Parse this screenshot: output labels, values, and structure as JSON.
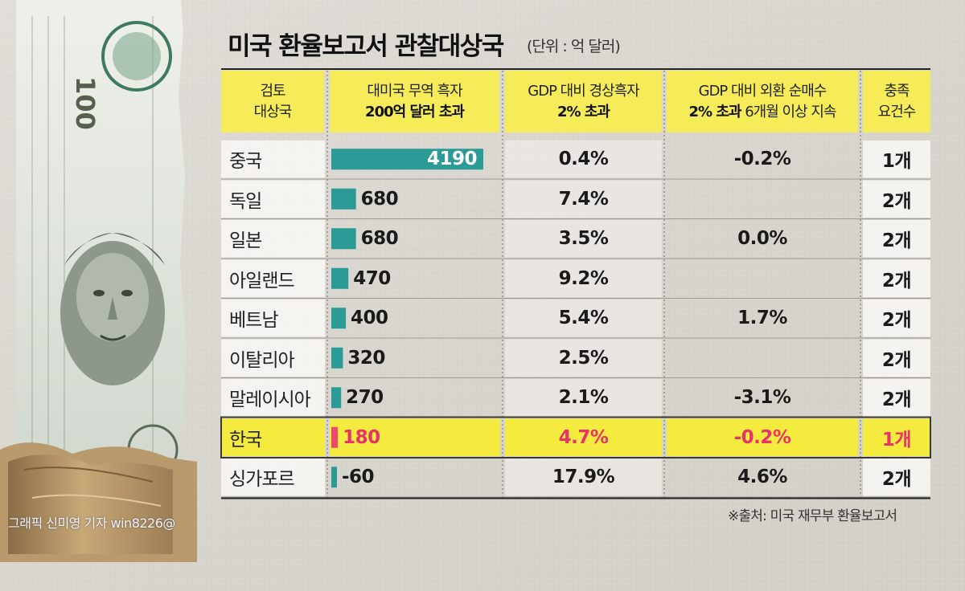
{
  "title": "미국 환율보고서 관찰대상국",
  "unit": "(단위 : 억 달러)",
  "headers": {
    "country": [
      "검토",
      "대상국"
    ],
    "trade": [
      "대미국 무역 흑자",
      "200억 달러 초과"
    ],
    "current": [
      "GDP 대비 경상흑자",
      "2% 초과"
    ],
    "fx": [
      "GDP 대비 외환 순매수",
      "2% 초과",
      " 6개월 이상 지속"
    ],
    "met": [
      "충족",
      "요건수"
    ]
  },
  "colors": {
    "bar": "#2c9a97",
    "bar_highlight": "#e84a6c",
    "highlight_text": "#e8326a",
    "header_bg": "#f6ec5a",
    "row_highlight": "#f5ea3e"
  },
  "chart_data": {
    "type": "table",
    "columns": [
      "검토 대상국",
      "대미국 무역 흑자 200억 달러 초과",
      "GDP 대비 경상흑자 2% 초과",
      "GDP 대비 외환 순매수 2% 초과 6개월 이상 지속",
      "충족 요건수"
    ],
    "rows": [
      {
        "country": "중국",
        "trade": 4190,
        "trade_label": "4190",
        "current": "0.4%",
        "fx": "-0.2%",
        "met": "1개",
        "highlight": false
      },
      {
        "country": "독일",
        "trade": 680,
        "trade_label": "680",
        "current": "7.4%",
        "fx": "",
        "met": "2개",
        "highlight": false
      },
      {
        "country": "일본",
        "trade": 680,
        "trade_label": "680",
        "current": "3.5%",
        "fx": "0.0%",
        "met": "2개",
        "highlight": false
      },
      {
        "country": "아일랜드",
        "trade": 470,
        "trade_label": "470",
        "current": "9.2%",
        "fx": "",
        "met": "2개",
        "highlight": false
      },
      {
        "country": "베트남",
        "trade": 400,
        "trade_label": "400",
        "current": "5.4%",
        "fx": "1.7%",
        "met": "2개",
        "highlight": false
      },
      {
        "country": "이탈리아",
        "trade": 320,
        "trade_label": "320",
        "current": "2.5%",
        "fx": "",
        "met": "2개",
        "highlight": false
      },
      {
        "country": "말레이시아",
        "trade": 270,
        "trade_label": "270",
        "current": "2.1%",
        "fx": "-3.1%",
        "met": "2개",
        "highlight": false
      },
      {
        "country": "한국",
        "trade": 180,
        "trade_label": "180",
        "current": "4.7%",
        "fx": "-0.2%",
        "met": "1개",
        "highlight": true
      },
      {
        "country": "싱가포르",
        "trade": -60,
        "trade_label": "-60",
        "current": "17.9%",
        "fx": "4.6%",
        "met": "2개",
        "highlight": false
      }
    ]
  },
  "source": "※출처: 미국 재무부 환율보고서",
  "credit": "그래픽 신미영 기자 win8226@"
}
